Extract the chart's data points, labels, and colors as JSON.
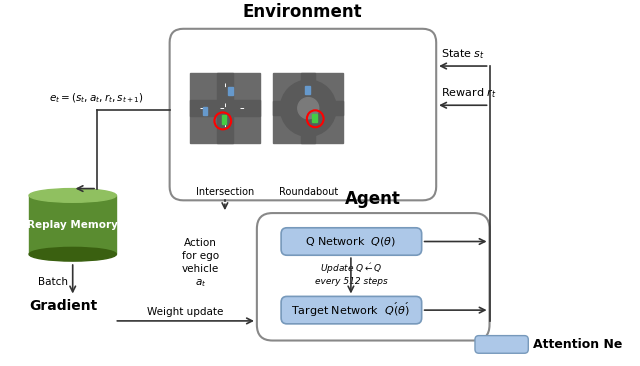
{
  "title": "Environment",
  "agent_title": "Agent",
  "replay_memory_label": "Replay Memory",
  "gradient_label": "Gradient",
  "q_network_label": "Q Network  $Q(\\theta)$",
  "target_network_label": "Target Network  $Q\\'(\\theta\\')$",
  "intersection_label": "Intersection",
  "roundabout_label": "Roundabout",
  "state_label": "State $s_t$",
  "reward_label": "Reward $r_t$",
  "experience_label": "$e_t = (s_t, a_t, r_t, s_{t+1})$",
  "batch_label": "Batch",
  "weight_update_label": "Weight update",
  "action_label": "Action\nfor ego\nvehicle\n$a_t$",
  "update_label": "Update $Q\\' \\leftarrow Q$\nevery 512 steps",
  "attention_label": "Attention Ne",
  "env_box_color": "#f0f0f0",
  "env_box_edge": "#555555",
  "agent_box_color": "#f0f0f0",
  "agent_box_edge": "#555555",
  "replay_color_top": "#90c060",
  "replay_color_body": "#5a8c30",
  "q_network_color": "#adc8e8",
  "target_network_color": "#adc8e8",
  "attention_color": "#adc8e8",
  "road_color": "#666666",
  "arrow_color": "#333333",
  "bg_color": "#ffffff"
}
